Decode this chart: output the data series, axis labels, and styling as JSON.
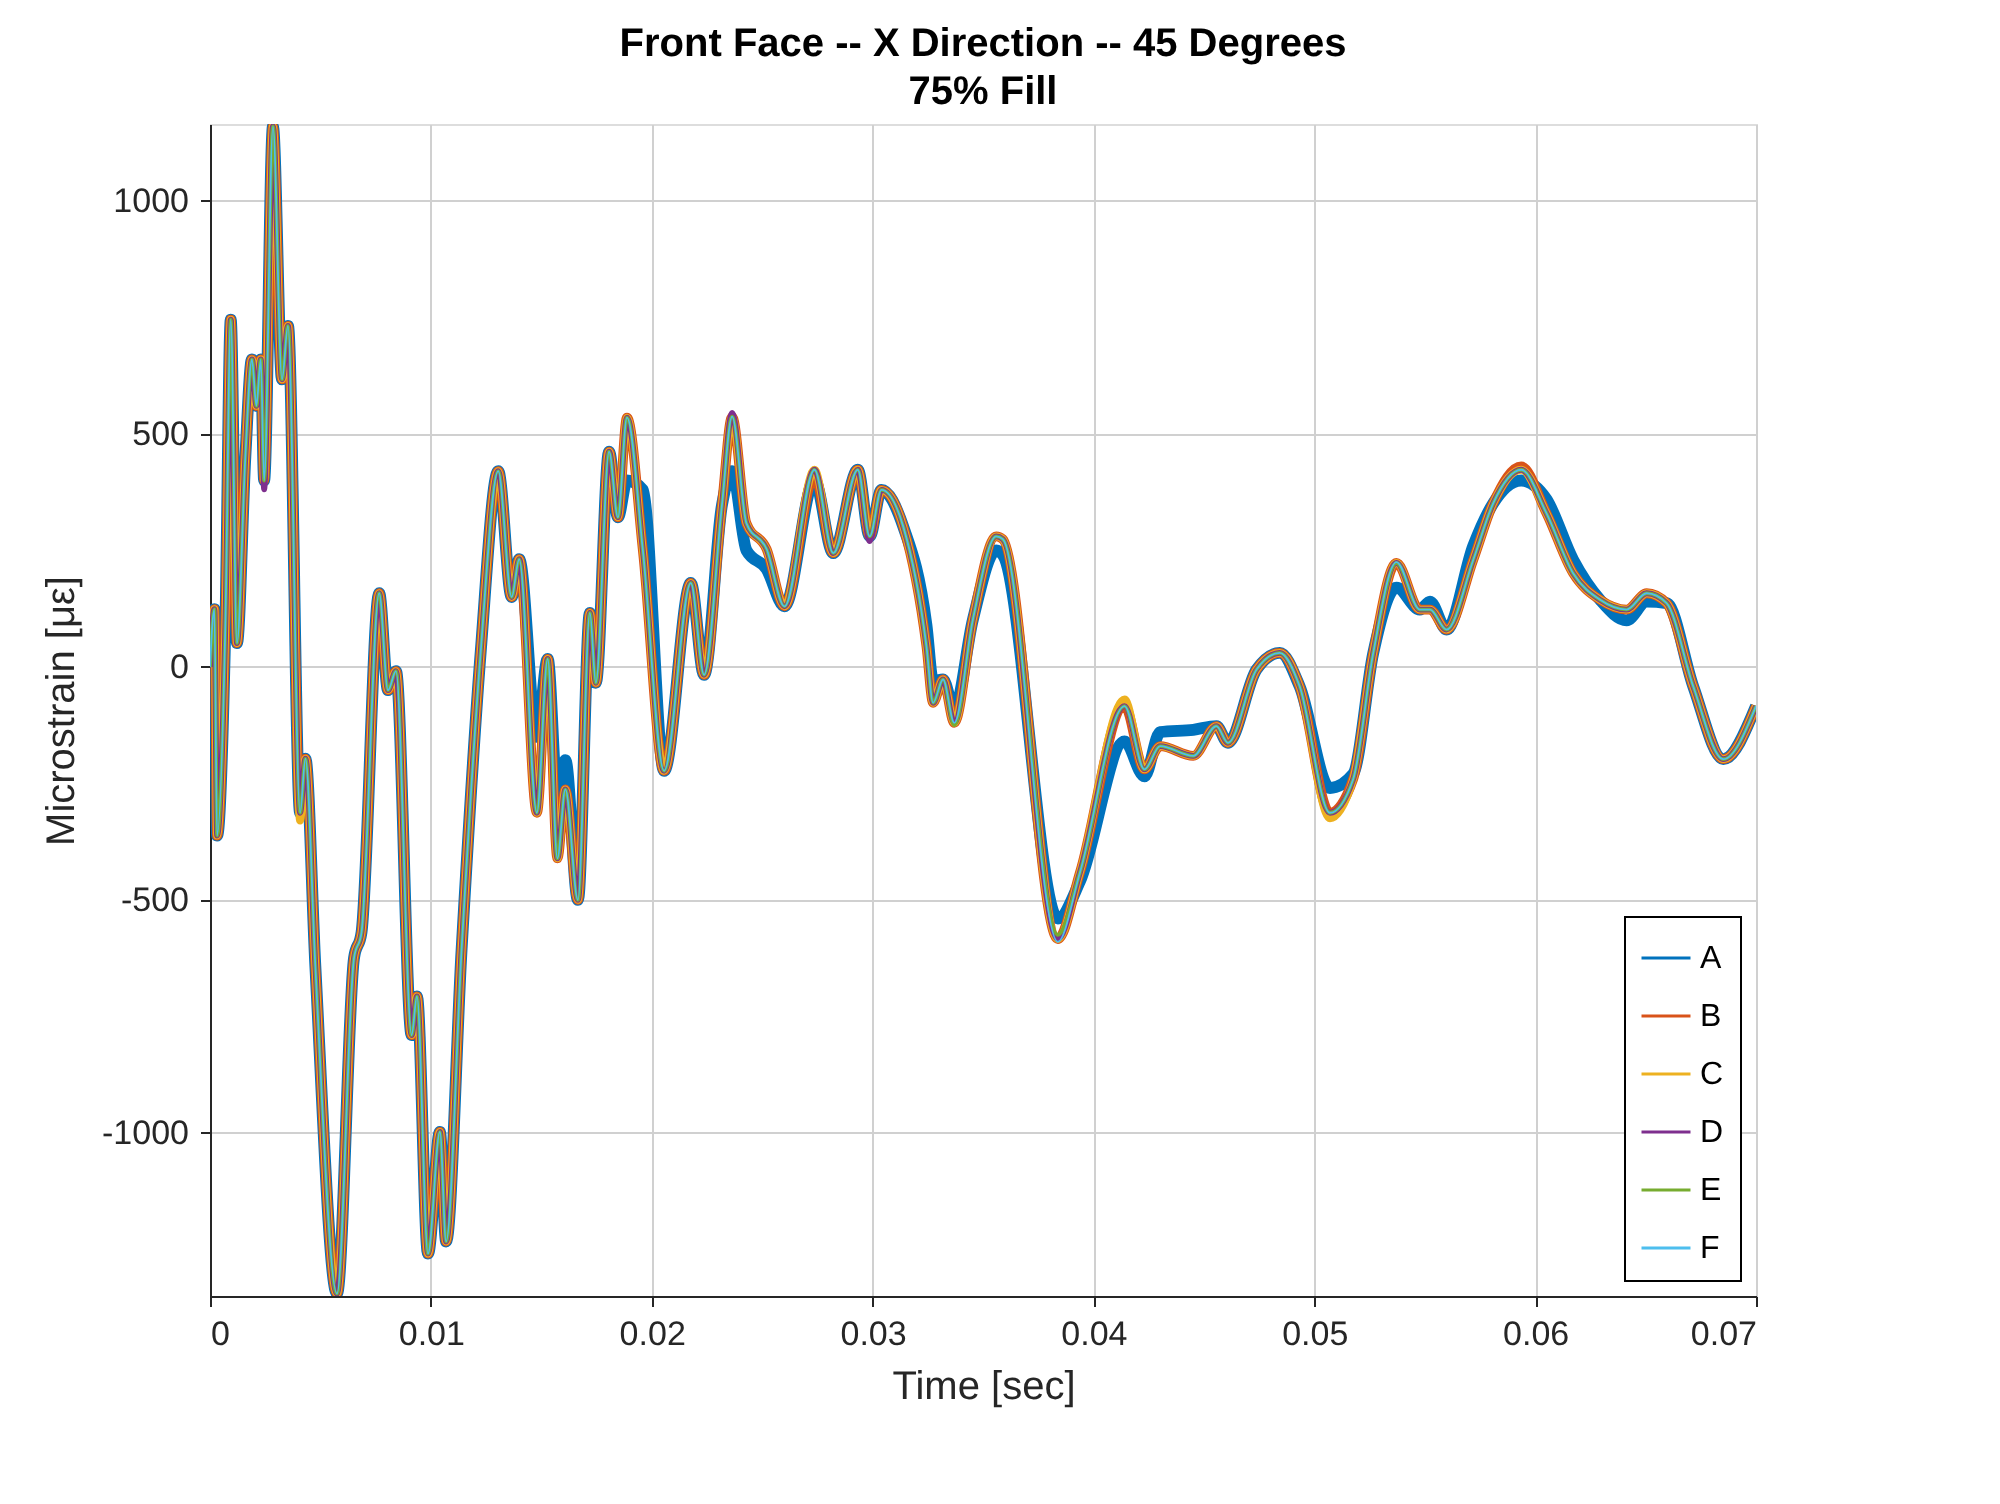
{
  "chart_data": {
    "type": "line",
    "title": "Front Face  --  X Direction  --  45 Degrees",
    "subtitle": "75% Fill",
    "xlabel": "Time [sec]",
    "ylabel": "Microstrain [με]",
    "x": [
      0,
      0.0002,
      0.00032,
      0.0007,
      0.00094,
      0.00122,
      0.0016,
      0.0019,
      0.0021,
      0.0023,
      0.00245,
      0.00285,
      0.00326,
      0.00353,
      0.00408,
      0.00432,
      0.00477,
      0.00575,
      0.00652,
      0.00686,
      0.00766,
      0.00806,
      0.00842,
      0.00913,
      0.00937,
      0.00987,
      0.01041,
      0.01069,
      0.01139,
      0.01226,
      0.01305,
      0.01366,
      0.014,
      0.0148,
      0.01529,
      0.01573,
      0.01609,
      0.01666,
      0.0172,
      0.01747,
      0.01807,
      0.01847,
      0.01888,
      0.0196,
      0.02056,
      0.02177,
      0.02237,
      0.02318,
      0.02364,
      0.02429,
      0.0252,
      0.02601,
      0.02737,
      0.02822,
      0.02933,
      0.02987,
      0.0304,
      0.03139,
      0.03244,
      0.03274,
      0.03319,
      0.0337,
      0.03454,
      0.0356,
      0.0359,
      0.03839,
      0.03939,
      0.04141,
      0.04231,
      0.04302,
      0.04452,
      0.04557,
      0.04609,
      0.04738,
      0.04844,
      0.04934,
      0.05071,
      0.05176,
      0.05267,
      0.05372,
      0.05478,
      0.05524,
      0.05599,
      0.0572,
      0.0581,
      0.05937,
      0.06051,
      0.06172,
      0.06294,
      0.06414,
      0.06505,
      0.06595,
      0.06716,
      0.06852,
      0.07
    ],
    "series": [
      {
        "name": "A",
        "color": "#0072bd",
        "values": [
          0,
          124,
          -362,
          100,
          745,
          51,
          450,
          660,
          560,
          660,
          400,
          1160,
          617,
          732,
          -313,
          -197,
          -642,
          -1345,
          -625,
          -570,
          158,
          -50,
          -9,
          -790,
          -707,
          -1259,
          -998,
          -1233,
          -608,
          34,
          420,
          150,
          231,
          -150,
          17,
          -280,
          -200,
          -500,
          116,
          -34,
          462,
          321,
          400,
          380,
          -223,
          180,
          -17,
          347,
          420,
          250,
          210,
          130,
          400,
          244,
          423,
          280,
          380,
          301,
          90,
          -30,
          -27,
          -90,
          101,
          250,
          240,
          -540,
          -460,
          -160,
          -235,
          -140,
          -135,
          -127,
          -163,
          -6,
          30,
          -42,
          -260,
          -230,
          30,
          170,
          123,
          140,
          80,
          260,
          351,
          400,
          360,
          230,
          144,
          100,
          140,
          137,
          -42,
          -198,
          -84
        ]
      },
      {
        "name": "B",
        "color": "#d95319",
        "values": [
          0,
          124,
          -362,
          100,
          745,
          51,
          450,
          660,
          560,
          660,
          400,
          1160,
          617,
          732,
          -313,
          -197,
          -642,
          -1345,
          -625,
          -570,
          158,
          -50,
          -9,
          -790,
          -707,
          -1259,
          -998,
          -1233,
          -608,
          34,
          420,
          150,
          231,
          -313,
          17,
          -411,
          -263,
          -500,
          116,
          -34,
          462,
          321,
          535,
          250,
          -223,
          180,
          -17,
          347,
          537,
          308,
          253,
          130,
          410,
          244,
          423,
          280,
          380,
          301,
          44,
          -77,
          -27,
          -120,
          101,
          280,
          274,
          -584,
          -441,
          -84,
          -220,
          -170,
          -191,
          -127,
          -163,
          -6,
          30,
          -42,
          -313,
          -241,
          30,
          223,
          123,
          123,
          80,
          230,
          351,
          430,
          330,
          201,
          144,
          123,
          158,
          137,
          -42,
          -198,
          -84
        ]
      },
      {
        "name": "C",
        "color": "#edb120",
        "values": [
          0,
          124,
          -362,
          100,
          745,
          51,
          450,
          660,
          560,
          660,
          400,
          1160,
          617,
          732,
          -330,
          -197,
          -642,
          -1345,
          -625,
          -570,
          158,
          -50,
          -9,
          -790,
          -707,
          -1259,
          -998,
          -1233,
          -608,
          34,
          420,
          150,
          231,
          -313,
          17,
          -411,
          -263,
          -500,
          116,
          -34,
          462,
          321,
          535,
          250,
          -223,
          180,
          -17,
          347,
          537,
          308,
          253,
          130,
          423,
          244,
          423,
          280,
          380,
          301,
          44,
          -77,
          -27,
          -120,
          101,
          280,
          274,
          -584,
          -441,
          -70,
          -220,
          -170,
          -191,
          -127,
          -163,
          -6,
          30,
          -42,
          -325,
          -241,
          30,
          223,
          123,
          123,
          80,
          230,
          351,
          423,
          330,
          201,
          144,
          123,
          158,
          137,
          -42,
          -198,
          -84
        ]
      },
      {
        "name": "D",
        "color": "#7e2f8e",
        "values": [
          0,
          124,
          -362,
          100,
          745,
          51,
          450,
          660,
          560,
          660,
          381,
          1160,
          617,
          732,
          -313,
          -197,
          -642,
          -1345,
          -625,
          -570,
          158,
          -50,
          -9,
          -790,
          -707,
          -1259,
          -998,
          -1233,
          -608,
          34,
          420,
          150,
          231,
          -313,
          17,
          -411,
          -263,
          -500,
          116,
          -34,
          462,
          321,
          535,
          250,
          -223,
          180,
          -17,
          347,
          545,
          308,
          253,
          130,
          423,
          244,
          423,
          270,
          380,
          301,
          44,
          -77,
          -27,
          -120,
          101,
          280,
          274,
          -584,
          -441,
          -84,
          -220,
          -170,
          -191,
          -127,
          -163,
          -6,
          30,
          -42,
          -313,
          -241,
          30,
          223,
          123,
          123,
          80,
          230,
          351,
          423,
          330,
          201,
          144,
          123,
          158,
          137,
          -42,
          -198,
          -84
        ]
      },
      {
        "name": "E",
        "color": "#77ac30",
        "values": [
          0,
          124,
          -362,
          100,
          745,
          51,
          450,
          660,
          560,
          660,
          400,
          1160,
          617,
          732,
          -313,
          -197,
          -642,
          -1345,
          -625,
          -570,
          158,
          -50,
          -9,
          -790,
          -707,
          -1259,
          -998,
          -1233,
          -608,
          34,
          420,
          150,
          231,
          -313,
          17,
          -411,
          -263,
          -500,
          116,
          -34,
          462,
          321,
          535,
          250,
          -223,
          180,
          -17,
          347,
          537,
          308,
          253,
          130,
          423,
          244,
          423,
          280,
          380,
          301,
          44,
          -77,
          -27,
          -125,
          101,
          280,
          274,
          -575,
          -441,
          -84,
          -220,
          -170,
          -191,
          -127,
          -163,
          -6,
          30,
          -42,
          -313,
          -241,
          30,
          223,
          123,
          123,
          80,
          230,
          351,
          423,
          330,
          201,
          144,
          123,
          158,
          137,
          -42,
          -198,
          -84
        ]
      },
      {
        "name": "F",
        "color": "#4dbeee",
        "values": [
          0,
          124,
          -362,
          100,
          745,
          51,
          450,
          660,
          560,
          660,
          400,
          1160,
          617,
          732,
          -313,
          -197,
          -642,
          -1345,
          -625,
          -570,
          158,
          -50,
          -9,
          -790,
          -707,
          -1259,
          -998,
          -1233,
          -608,
          34,
          420,
          150,
          231,
          -313,
          17,
          -411,
          -263,
          -500,
          116,
          -34,
          462,
          321,
          535,
          250,
          -223,
          180,
          -17,
          347,
          537,
          308,
          253,
          130,
          423,
          244,
          423,
          280,
          380,
          301,
          44,
          -77,
          -27,
          -120,
          101,
          280,
          274,
          -590,
          -441,
          -84,
          -220,
          -170,
          -191,
          -127,
          -163,
          -6,
          30,
          -42,
          -313,
          -241,
          30,
          225,
          123,
          123,
          80,
          230,
          351,
          423,
          330,
          201,
          144,
          123,
          158,
          137,
          -42,
          -198,
          -84
        ]
      }
    ],
    "xlim": [
      0,
      0.07
    ],
    "ylim": [
      -1350,
      1165
    ],
    "xticks": [
      0,
      0.01,
      0.02,
      0.03,
      0.04,
      0.05,
      0.06,
      0.07
    ],
    "yticks": [
      -1000,
      -500,
      0,
      500,
      1000
    ],
    "grid": true,
    "legend": "bottom right",
    "line_style": "solid"
  }
}
